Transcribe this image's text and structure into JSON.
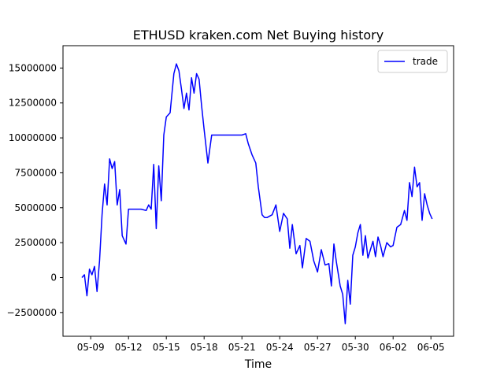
{
  "chart_data": {
    "type": "line",
    "title": "ETHUSD kraken.com Net Buying history",
    "xlabel": "Time",
    "ylabel": "",
    "x_ticks": [
      "05-09",
      "05-12",
      "05-15",
      "05-18",
      "05-21",
      "05-24",
      "05-27",
      "05-30",
      "06-02",
      "06-05"
    ],
    "x_tick_days": [
      9,
      12,
      15,
      18,
      21,
      24,
      27,
      30,
      33,
      36
    ],
    "xlim_days": [
      6.8,
      37.8
    ],
    "y_ticks": [
      -2500000,
      0,
      2500000,
      5000000,
      7500000,
      10000000,
      12500000,
      15000000
    ],
    "y_tick_labels": [
      "−2500000",
      "0",
      "2500000",
      "5000000",
      "7500000",
      "10000000",
      "12500000",
      "15000000"
    ],
    "ylim": [
      -4200000,
      16600000
    ],
    "grid": false,
    "legend": {
      "placement": "top-right"
    },
    "series": [
      {
        "name": "trade",
        "color": "#0000ff",
        "x_days": [
          8.3,
          8.5,
          8.7,
          8.9,
          9.1,
          9.3,
          9.5,
          9.7,
          9.9,
          10.1,
          10.3,
          10.5,
          10.7,
          10.9,
          11.1,
          11.3,
          11.5,
          11.8,
          12.0,
          12.5,
          13.0,
          13.4,
          13.6,
          13.8,
          14.0,
          14.2,
          14.4,
          14.6,
          14.8,
          15.0,
          15.3,
          15.6,
          15.8,
          16.0,
          16.2,
          16.4,
          16.6,
          16.8,
          17.0,
          17.2,
          17.4,
          17.6,
          17.8,
          18.0,
          18.3,
          18.6,
          19.5,
          20.5,
          21.0,
          21.3,
          21.5,
          21.8,
          22.1,
          22.3,
          22.6,
          22.8,
          23.0,
          23.4,
          23.7,
          24.0,
          24.3,
          24.6,
          24.8,
          25.0,
          25.3,
          25.6,
          25.8,
          26.1,
          26.4,
          26.7,
          27.0,
          27.3,
          27.6,
          27.9,
          28.1,
          28.3,
          28.5,
          28.8,
          29.0,
          29.2,
          29.4,
          29.6,
          29.8,
          30.0,
          30.2,
          30.4,
          30.6,
          30.8,
          31.0,
          31.2,
          31.4,
          31.6,
          31.8,
          32.0,
          32.2,
          32.5,
          32.8,
          33.0,
          33.3,
          33.6,
          33.9,
          34.1,
          34.3,
          34.5,
          34.7,
          34.9,
          35.1,
          35.3,
          35.5,
          35.7,
          35.9,
          36.1
        ],
        "values": [
          0,
          200000,
          -1300000,
          600000,
          200000,
          800000,
          -1000000,
          1200000,
          4500000,
          6700000,
          5200000,
          8500000,
          7800000,
          8300000,
          5200000,
          6300000,
          3000000,
          2400000,
          4900000,
          4900000,
          4900000,
          4800000,
          5200000,
          4900000,
          8100000,
          3500000,
          8000000,
          5500000,
          10200000,
          11500000,
          11800000,
          14600000,
          15300000,
          14800000,
          13500000,
          12100000,
          13200000,
          12000000,
          14300000,
          13200000,
          14600000,
          14200000,
          12300000,
          10600000,
          8200000,
          10200000,
          10200000,
          10200000,
          10200000,
          10300000,
          9600000,
          8800000,
          8200000,
          6500000,
          4500000,
          4300000,
          4300000,
          4500000,
          5200000,
          3300000,
          4600000,
          4200000,
          2100000,
          3800000,
          1700000,
          2300000,
          700000,
          2800000,
          2600000,
          1200000,
          400000,
          2000000,
          900000,
          1000000,
          -600000,
          2400000,
          1100000,
          -600000,
          -1200000,
          -3300000,
          -200000,
          -1900000,
          1600000,
          2200000,
          3200000,
          3800000,
          1600000,
          3000000,
          1400000,
          2000000,
          2600000,
          1500000,
          2900000,
          2300000,
          1500000,
          2500000,
          2200000,
          2300000,
          3600000,
          3800000,
          4800000,
          4100000,
          6800000,
          5800000,
          7900000,
          6500000,
          6800000,
          4100000,
          6000000,
          5200000,
          4600000,
          4200000
        ]
      }
    ]
  }
}
